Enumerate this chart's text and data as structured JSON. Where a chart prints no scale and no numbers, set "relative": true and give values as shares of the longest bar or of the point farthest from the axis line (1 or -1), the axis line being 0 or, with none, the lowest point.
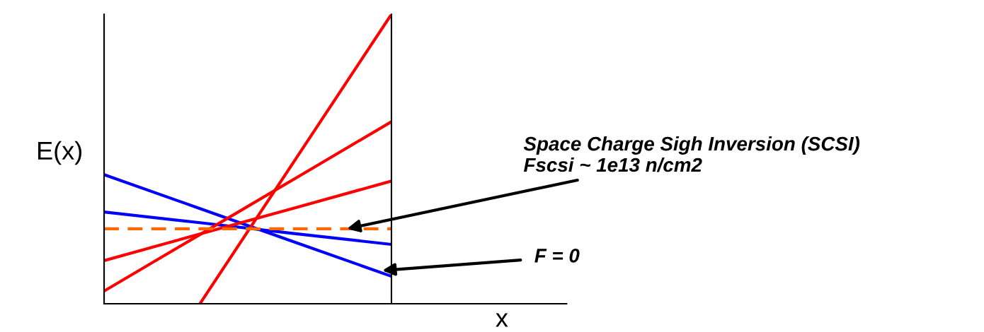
{
  "chart_data": {
    "type": "line",
    "relative": true,
    "xlabel": "x",
    "ylabel": "E(x)",
    "categories": [
      null,
      null,
      null,
      null
    ],
    "series": [
      {
        "color": "#0000ff",
        "values": [
          0.446,
          0.329,
          0.212,
          0.095
        ]
      },
      {
        "color": "#0000ff",
        "values": [
          0.317,
          0.28,
          0.242,
          0.205
        ]
      },
      {
        "color": "#ff0000",
        "values": [
          0.149,
          0.241,
          0.332,
          0.424
        ]
      },
      {
        "color": "#ff0000",
        "values": [
          0.044,
          0.239,
          0.434,
          0.629
        ]
      },
      {
        "color": "#ff0000",
        "values": [
          null,
          0,
          0.5,
          1
        ]
      },
      {
        "color": "#ff6600",
        "line_style": "dashed",
        "values": [
          0.259,
          0.259,
          0.259,
          0.259
        ]
      }
    ],
    "annotations": [
      "Space Charge Sigh Inversion (SCSI)\nFscsi ~ 1e13 n/cm2",
      "F = 0"
    ]
  }
}
